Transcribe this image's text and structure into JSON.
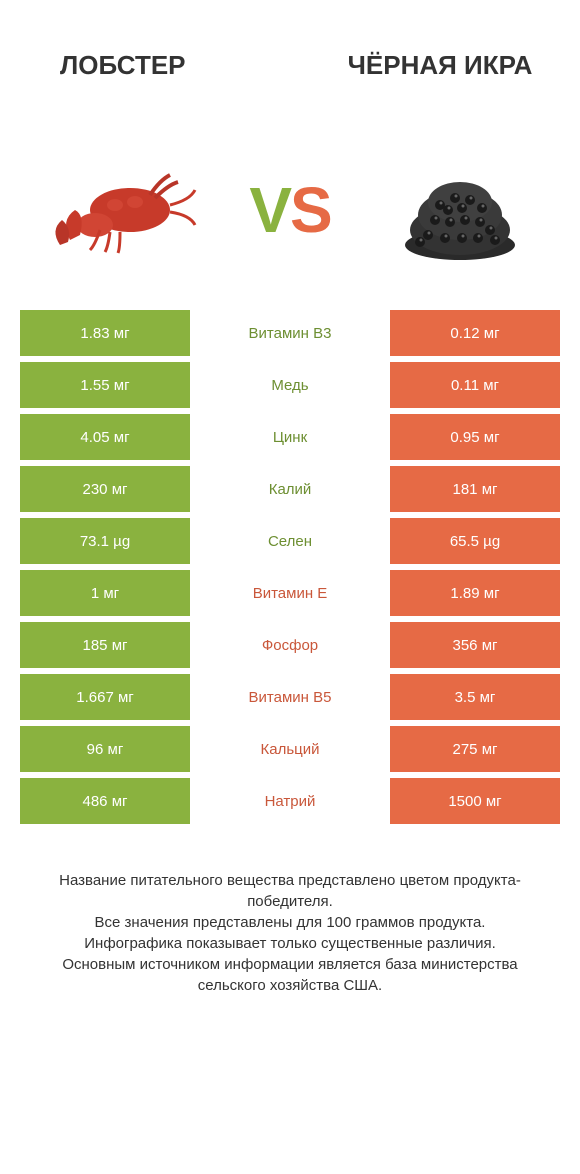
{
  "header": {
    "left_title": "ЛОБСТЕР",
    "right_title": "ЧЁРНАЯ ИКРА"
  },
  "vs": {
    "v": "V",
    "s": "S"
  },
  "colors": {
    "green": "#8ab23f",
    "orange": "#e66a45",
    "mid_green": "#6d8f32",
    "mid_orange": "#c9573a",
    "text": "#333333",
    "bg": "#ffffff"
  },
  "rows": [
    {
      "left": "1.83 мг",
      "mid": "Витамин B3",
      "right": "0.12 мг",
      "winner": "left"
    },
    {
      "left": "1.55 мг",
      "mid": "Медь",
      "right": "0.11 мг",
      "winner": "left"
    },
    {
      "left": "4.05 мг",
      "mid": "Цинк",
      "right": "0.95 мг",
      "winner": "left"
    },
    {
      "left": "230 мг",
      "mid": "Калий",
      "right": "181 мг",
      "winner": "left"
    },
    {
      "left": "73.1 µg",
      "mid": "Селен",
      "right": "65.5 µg",
      "winner": "left"
    },
    {
      "left": "1 мг",
      "mid": "Витамин E",
      "right": "1.89 мг",
      "winner": "right"
    },
    {
      "left": "185 мг",
      "mid": "Фосфор",
      "right": "356 мг",
      "winner": "right"
    },
    {
      "left": "1.667 мг",
      "mid": "Витамин B5",
      "right": "3.5 мг",
      "winner": "right"
    },
    {
      "left": "96 мг",
      "mid": "Кальций",
      "right": "275 мг",
      "winner": "right"
    },
    {
      "left": "486 мг",
      "mid": "Натрий",
      "right": "1500 мг",
      "winner": "right"
    }
  ],
  "footer": {
    "line1": "Название питательного вещества представлено цветом продукта-победителя.",
    "line2": "Все значения представлены для 100 граммов продукта.",
    "line3": "Инфографика показывает только существенные различия.",
    "line4": "Основным источником информации является база министерства сельского хозяйства США."
  }
}
